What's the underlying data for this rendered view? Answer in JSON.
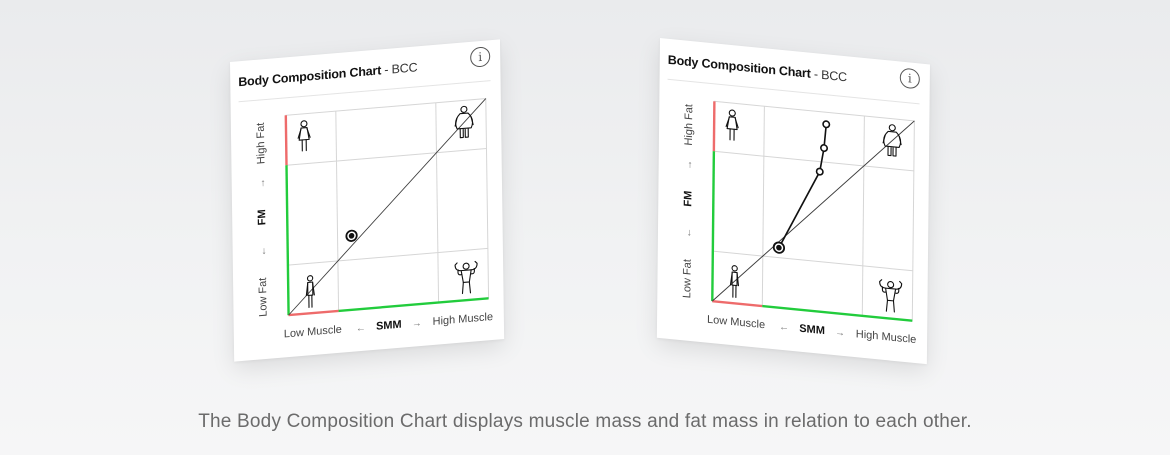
{
  "colors": {
    "background": "#eeeff1",
    "grid": "#d6d6d6",
    "diagonal": "#3a3a3a",
    "good_zone": "#22cc3c",
    "bad_zone": "#ee6b6b",
    "marker": "#111111",
    "caption": "#6b6b6b"
  },
  "cards": [
    {
      "title_bold": "Body Composition Chart",
      "title_rest": " - BCC",
      "info_icon": "info-icon",
      "y_axis": {
        "bottom_label": "Low Fat",
        "center_label": "FM",
        "top_label": "High Fat",
        "arrow_up": "→",
        "arrow_down": "←"
      },
      "x_axis": {
        "left_label": "Low Muscle",
        "center_label": "SMM",
        "right_label": "High Muscle",
        "arrow_left": "←",
        "arrow_right": "→"
      },
      "icons": {
        "top_left": "lean-woman-icon",
        "top_right": "overweight-person-icon",
        "bottom_left": "thin-person-icon",
        "bottom_right": "muscular-person-icon"
      }
    },
    {
      "title_bold": "Body Composition Chart",
      "title_rest": " - BCC",
      "info_icon": "info-icon",
      "y_axis": {
        "bottom_label": "Low Fat",
        "center_label": "FM",
        "top_label": "High Fat",
        "arrow_up": "→",
        "arrow_down": "←"
      },
      "x_axis": {
        "left_label": "Low Muscle",
        "center_label": "SMM",
        "right_label": "High Muscle",
        "arrow_left": "←",
        "arrow_right": "→"
      },
      "icons": {
        "top_left": "lean-woman-icon",
        "top_right": "overweight-person-icon",
        "bottom_left": "thin-person-icon",
        "bottom_right": "muscular-person-icon"
      }
    }
  ],
  "chart_data": [
    {
      "type": "scatter",
      "title": "Body Composition Chart - BCC",
      "xlabel": "SMM",
      "ylabel": "FM",
      "x_zones": [
        "Low Muscle",
        "",
        "High Muscle"
      ],
      "y_zones": [
        "Low Fat",
        "",
        "High Fat"
      ],
      "xlim": [
        0,
        1
      ],
      "ylim": [
        0,
        1
      ],
      "diagonal_reference": true,
      "current": {
        "x": 0.32,
        "y": 0.37
      },
      "history": []
    },
    {
      "type": "line",
      "title": "Body Composition Chart - BCC",
      "xlabel": "SMM",
      "ylabel": "FM",
      "x_zones": [
        "Low Muscle",
        "",
        "High Muscle"
      ],
      "y_zones": [
        "Low Fat",
        "",
        "High Fat"
      ],
      "xlim": [
        0,
        1
      ],
      "ylim": [
        0,
        1
      ],
      "diagonal_reference": true,
      "current": {
        "x": 0.33,
        "y": 0.3
      },
      "history": [
        {
          "x": 0.56,
          "y": 0.94
        },
        {
          "x": 0.55,
          "y": 0.82
        },
        {
          "x": 0.53,
          "y": 0.7
        }
      ]
    }
  ],
  "caption": "The Body Composition Chart displays muscle mass and fat mass in relation to each other."
}
